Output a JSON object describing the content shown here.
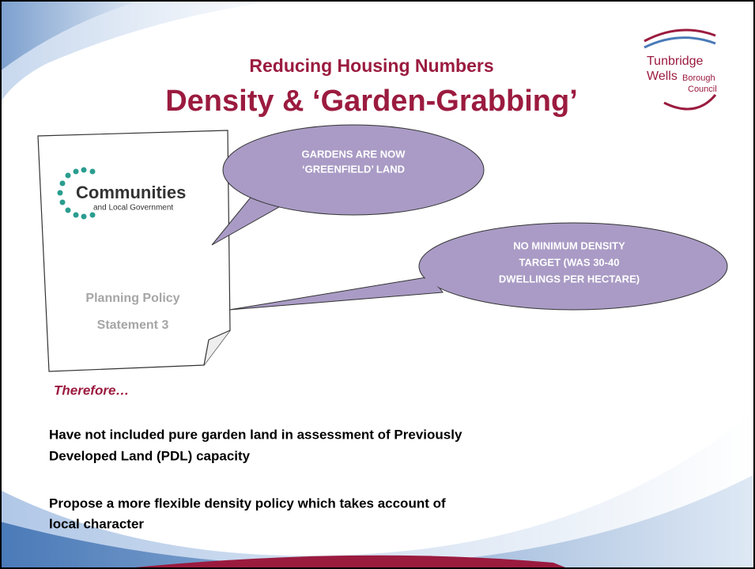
{
  "header": {
    "subtitle": "Reducing Housing Numbers",
    "title": "Density & ‘Garden-Grabbing’"
  },
  "logo": {
    "lines": [
      "Tunbridge",
      "Wells",
      "Borough",
      "Council"
    ]
  },
  "document": {
    "logo_name": "Communities",
    "logo_tagline": "and Local Government",
    "title_lines": [
      "Planning Policy",
      "Statement 3"
    ]
  },
  "callouts": [
    {
      "lines": [
        "GARDENS ARE NOW",
        "‘GREENFIELD’ LAND"
      ]
    },
    {
      "lines": [
        "NO MINIMUM DENSITY",
        "TARGET (WAS 30-40",
        "DWELLINGS PER HECTARE)"
      ]
    }
  ],
  "therefore": "Therefore…",
  "points": [
    {
      "lines": [
        "Have not included pure garden land in assessment of Previously",
        "Developed Land (PDL) capacity"
      ]
    },
    {
      "lines": [
        "Propose a more flexible density policy which takes account of",
        "local character"
      ]
    }
  ]
}
